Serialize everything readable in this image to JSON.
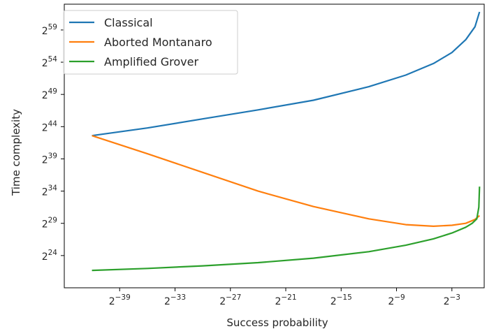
{
  "chart_data": {
    "type": "line",
    "xlabel": "Success probability",
    "ylabel": "Time complexity",
    "x_scale": "log2",
    "y_scale": "log2",
    "xlim_exp": [
      -45,
      0.5
    ],
    "ylim_exp": [
      19,
      63
    ],
    "x_ticks": [
      {
        "exp": -39,
        "base": "2",
        "sup": "−39"
      },
      {
        "exp": -33,
        "base": "2",
        "sup": "−33"
      },
      {
        "exp": -27,
        "base": "2",
        "sup": "−27"
      },
      {
        "exp": -21,
        "base": "2",
        "sup": "−21"
      },
      {
        "exp": -15,
        "base": "2",
        "sup": "−15"
      },
      {
        "exp": -9,
        "base": "2",
        "sup": "−9"
      },
      {
        "exp": -3,
        "base": "2",
        "sup": "−3"
      }
    ],
    "y_ticks": [
      {
        "exp": 24,
        "base": "2",
        "sup": "24"
      },
      {
        "exp": 29,
        "base": "2",
        "sup": "29"
      },
      {
        "exp": 34,
        "base": "2",
        "sup": "34"
      },
      {
        "exp": 39,
        "base": "2",
        "sup": "39"
      },
      {
        "exp": 44,
        "base": "2",
        "sup": "44"
      },
      {
        "exp": 49,
        "base": "2",
        "sup": "49"
      },
      {
        "exp": 54,
        "base": "2",
        "sup": "54"
      },
      {
        "exp": 59,
        "base": "2",
        "sup": "59"
      }
    ],
    "legend_position": "top-left",
    "series": [
      {
        "name": "Classical",
        "color": "#1f77b4",
        "x_exp": [
          -42,
          -36,
          -30,
          -24,
          -18,
          -12,
          -8,
          -5,
          -3,
          -1.5,
          -0.5,
          -0.01
        ],
        "y_exp": [
          42.6,
          43.8,
          45.2,
          46.6,
          48.1,
          50.2,
          52.0,
          53.8,
          55.5,
          57.5,
          59.5,
          61.8
        ]
      },
      {
        "name": "Aborted Montanaro",
        "color": "#ff7f0e",
        "x_exp": [
          -42,
          -36,
          -30,
          -24,
          -18,
          -12,
          -8,
          -5,
          -3,
          -1.5,
          -0.5,
          -0.01
        ],
        "y_exp": [
          42.6,
          39.8,
          36.9,
          34.0,
          31.6,
          29.7,
          28.8,
          28.55,
          28.7,
          29.0,
          29.6,
          30.2
        ]
      },
      {
        "name": "Amplified Grover",
        "color": "#2ca02c",
        "x_exp": [
          -42,
          -36,
          -30,
          -24,
          -18,
          -12,
          -8,
          -5,
          -3,
          -1.5,
          -0.8,
          -0.3,
          -0.08,
          -0.01
        ],
        "y_exp": [
          21.7,
          22.0,
          22.4,
          22.9,
          23.6,
          24.6,
          25.6,
          26.6,
          27.5,
          28.4,
          29.0,
          29.7,
          31.5,
          34.7
        ]
      }
    ]
  }
}
